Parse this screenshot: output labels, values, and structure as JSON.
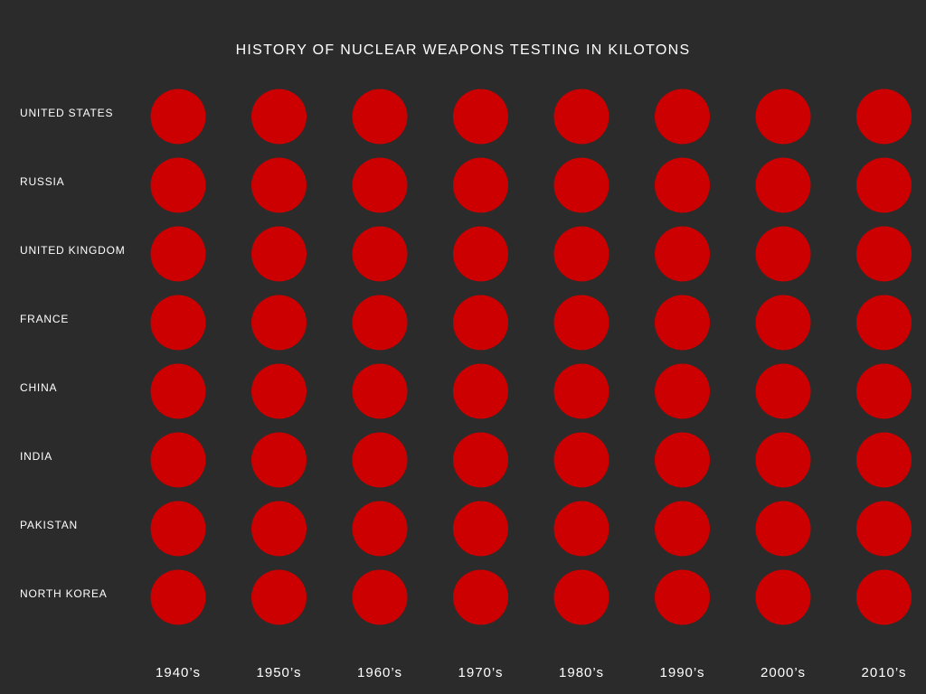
{
  "chart_data": {
    "type": "scatter",
    "title": "HISTORY OF NUCLEAR WEAPONS TESTING IN KILOTONS",
    "rows": [
      "UNITED STATES",
      "RUSSIA",
      "UNITED KINGDOM",
      "FRANCE",
      "CHINA",
      "INDIA",
      "PAKISTAN",
      "NORTH KOREA"
    ],
    "columns": [
      "1940’s",
      "1950’s",
      "1960’s",
      "1970’s",
      "1980’s",
      "1990’s",
      "2000’s",
      "2010’s"
    ],
    "values": [
      [
        1,
        1,
        1,
        1,
        1,
        1,
        1,
        1
      ],
      [
        1,
        1,
        1,
        1,
        1,
        1,
        1,
        1
      ],
      [
        1,
        1,
        1,
        1,
        1,
        1,
        1,
        1
      ],
      [
        1,
        1,
        1,
        1,
        1,
        1,
        1,
        1
      ],
      [
        1,
        1,
        1,
        1,
        1,
        1,
        1,
        1
      ],
      [
        1,
        1,
        1,
        1,
        1,
        1,
        1,
        1
      ],
      [
        1,
        1,
        1,
        1,
        1,
        1,
        1,
        1
      ],
      [
        1,
        1,
        1,
        1,
        1,
        1,
        1,
        1
      ]
    ],
    "marker_color": "#cc0000",
    "background_color": "#2b2b2b",
    "text_color": "#ffffff",
    "grid": false
  }
}
